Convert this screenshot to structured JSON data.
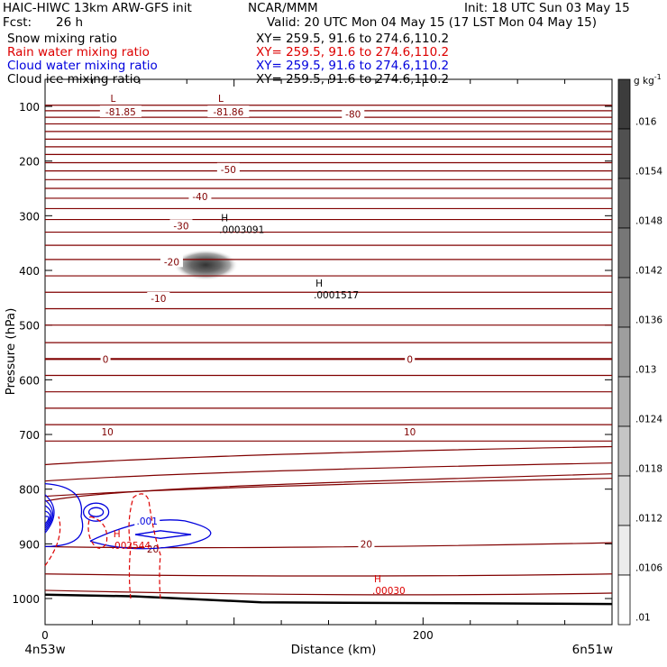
{
  "header": {
    "model": "HAIC-HIWC 13km ARW-GFS init",
    "org": "NCAR/MMM",
    "init": "Init: 18 UTC Sun 03 May 15",
    "fcst_label": "Fcst:",
    "fcst_value": "26 h",
    "valid": "Valid: 20 UTC Mon 04 May 15 (17 LST Mon 04 May 15)"
  },
  "fields": [
    {
      "name": "Snow mixing ratio",
      "xy": "XY= 259.5, 91.6 to 274.6,110.2",
      "color": "#000000"
    },
    {
      "name": "Rain water mixing ratio",
      "xy": "XY= 259.5, 91.6 to 274.6,110.2",
      "color": "#dd0000"
    },
    {
      "name": "Cloud water mixing ratio",
      "xy": "XY= 259.5, 91.6 to 274.6,110.2",
      "color": "#0000dd"
    },
    {
      "name": "Cloud ice mixing ratio",
      "xy": "XY= 259.5, 91.6 to 274.6,110.2",
      "color": "#000000"
    }
  ],
  "colorbar": {
    "unit_text": "g kg",
    "unit_exp": "-1",
    "labels": [
      ".016",
      ".0154",
      ".0148",
      ".0142",
      ".0136",
      ".013",
      ".0124",
      ".0118",
      ".0112",
      ".0106",
      ".01"
    ]
  },
  "chart_data": {
    "type": "cross-section",
    "ylabel": "Pressure (hPa)",
    "xlabel": "Distance (km)",
    "y_ticks": [
      100,
      200,
      300,
      400,
      500,
      600,
      700,
      800,
      900,
      1000
    ],
    "x_ticks": [
      0,
      200
    ],
    "x_left_label": "4n53w",
    "x_right_label": "6n51w",
    "ylim": [
      1050,
      50
    ],
    "xlim": [
      0,
      300
    ],
    "temperature_contours": {
      "color": "#800000",
      "labels": [
        {
          "text": "-81.85",
          "x": 40,
          "p": 110
        },
        {
          "text": "-81.86",
          "x": 97,
          "p": 110
        },
        {
          "text": "-80",
          "x": 163,
          "p": 114
        },
        {
          "text": "-50",
          "x": 97,
          "p": 215
        },
        {
          "text": "-40",
          "x": 82,
          "p": 265
        },
        {
          "text": "-30",
          "x": 72,
          "p": 318
        },
        {
          "text": "-20",
          "x": 67,
          "p": 384
        },
        {
          "text": "-10",
          "x": 60,
          "p": 451
        },
        {
          "text": "0",
          "x": 32,
          "p": 562
        },
        {
          "text": "0",
          "x": 193,
          "p": 562
        },
        {
          "text": "10",
          "x": 33,
          "p": 695
        },
        {
          "text": "10",
          "x": 193,
          "p": 695
        },
        {
          "text": "20",
          "x": 57,
          "p": 909
        },
        {
          "text": "20",
          "x": 170,
          "p": 900
        }
      ]
    },
    "extrema": [
      {
        "mark": "L",
        "x": 36,
        "p": 92,
        "color": "#800000"
      },
      {
        "mark": "L",
        "x": 93,
        "p": 92,
        "color": "#800000"
      },
      {
        "mark": "H",
        "x": 95,
        "p": 310,
        "value": ".0003091",
        "color": "#000000"
      },
      {
        "mark": "H",
        "x": 145,
        "p": 430,
        "value": ".0001517",
        "color": "#000000"
      },
      {
        "mark": "H",
        "x": 38,
        "p": 888,
        "value": ".002544",
        "color": "#dd0000"
      },
      {
        "mark": "H",
        "x": 176,
        "p": 970,
        "value": ".00030",
        "color": "#dd0000"
      }
    ],
    "cloud_water_labels": [
      {
        "text": ".001",
        "x": 54,
        "p": 858
      }
    ],
    "shaded_cloud_ice": {
      "x": 85,
      "p": 380,
      "max": 0.016
    }
  }
}
